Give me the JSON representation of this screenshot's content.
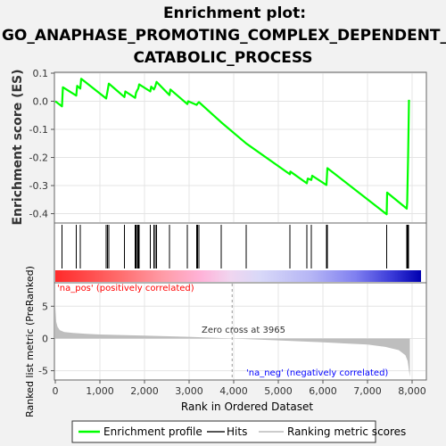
{
  "title": [
    "Enrichment plot:",
    "GO_ANAPHASE_PROMOTING_COMPLEX_DEPENDENT_",
    "CATABOLIC_PROCESS"
  ],
  "colors": {
    "es_line": "#00ff00",
    "hits": "#000000",
    "metric_fill": "#bebebe",
    "pos_text": "#ff0000",
    "neg_text": "#0000ff",
    "zero_cross_line": "#999999"
  },
  "chart_data": [
    {
      "type": "line",
      "panel": "enrichment",
      "ylabel": "Enrichment score (ES)",
      "ylim": [
        -0.43,
        0.1
      ],
      "yticks": [
        "0.1",
        "0.0",
        "-0.1",
        "-0.2",
        "-0.3",
        "-0.4"
      ],
      "yticks_values": [
        0.1,
        0.0,
        -0.1,
        -0.2,
        -0.3,
        -0.4
      ],
      "xlim": [
        0,
        8300
      ],
      "grid": true,
      "series": [
        {
          "name": "Enrichment profile",
          "x": [
            0,
            150,
            170,
            470,
            490,
            560,
            580,
            1140,
            1170,
            1200,
            1550,
            1570,
            1790,
            1810,
            1840,
            1860,
            1880,
            2130,
            2150,
            2210,
            2240,
            2270,
            2560,
            2580,
            2960,
            2980,
            3170,
            3190,
            3220,
            3720,
            4280,
            5260,
            5270,
            5640,
            5660,
            5740,
            5760,
            6080,
            6100,
            7430,
            7440,
            7880,
            7890,
            7900,
            7910,
            7920,
            7930
          ],
          "y": [
            0.0,
            -0.018,
            0.05,
            0.02,
            0.055,
            0.045,
            0.08,
            0.01,
            0.035,
            0.063,
            0.015,
            0.035,
            0.012,
            0.03,
            0.04,
            0.045,
            0.06,
            0.035,
            0.052,
            0.042,
            0.052,
            0.069,
            0.022,
            0.042,
            -0.01,
            0.0,
            -0.013,
            -0.008,
            -0.003,
            -0.075,
            -0.15,
            -0.26,
            -0.25,
            -0.292,
            -0.275,
            -0.28,
            -0.265,
            -0.298,
            -0.238,
            -0.402,
            -0.325,
            -0.382,
            -0.36,
            -0.28,
            -0.2,
            -0.1,
            0.005
          ]
        }
      ]
    },
    {
      "type": "scatter",
      "panel": "hits",
      "series": [
        {
          "name": "Hits",
          "x": [
            150,
            470,
            560,
            1140,
            1170,
            1200,
            1550,
            1790,
            1810,
            1840,
            1860,
            1880,
            2130,
            2210,
            2240,
            2270,
            2560,
            2960,
            3170,
            3190,
            3220,
            3720,
            4280,
            5260,
            5640,
            5740,
            6080,
            6100,
            7430,
            7880,
            7900,
            7920
          ]
        }
      ]
    },
    {
      "type": "area",
      "panel": "ranked_metric",
      "ylabel": "Ranked list metric (PreRanked)",
      "xlabel": "Rank in Ordered Dataset",
      "ylim": [
        -6.3,
        8.5
      ],
      "yticks": [
        "5",
        "0",
        "-5"
      ],
      "yticks_values": [
        5,
        0,
        -5
      ],
      "xlim": [
        0,
        8300
      ],
      "xticks": [
        "0",
        "1,000",
        "2,000",
        "3,000",
        "4,000",
        "5,000",
        "6,000",
        "7,000",
        "8,000"
      ],
      "xticks_values": [
        0,
        1000,
        2000,
        3000,
        4000,
        5000,
        6000,
        7000,
        8000
      ],
      "series": [
        {
          "name": "Ranking metric scores",
          "x": [
            0,
            20,
            50,
            100,
            200,
            400,
            700,
            1000,
            2000,
            3000,
            3965,
            5000,
            6000,
            7000,
            7400,
            7700,
            7850,
            7900,
            7930,
            7950
          ],
          "y": [
            5.0,
            2.6,
            1.8,
            1.3,
            1.0,
            0.85,
            0.72,
            0.62,
            0.45,
            0.25,
            0.0,
            -0.3,
            -0.6,
            -0.95,
            -1.3,
            -1.8,
            -2.6,
            -3.5,
            -5.0,
            -6.0
          ]
        }
      ],
      "annotations": {
        "zero_cross": "Zero cross at 3965",
        "zero_cross_x": 3965,
        "pos_label": "'na_pos' (positively correlated)",
        "neg_label": "'na_neg' (negatively correlated)"
      }
    }
  ],
  "legend": {
    "items": [
      "Enrichment profile",
      "Hits",
      "Ranking metric scores"
    ]
  }
}
